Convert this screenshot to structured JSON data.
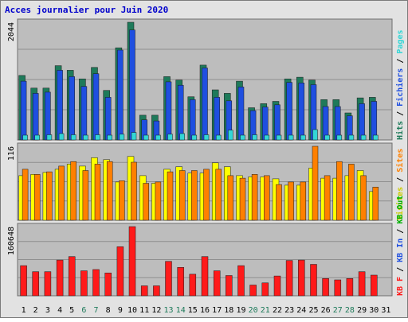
{
  "chart_data": {
    "type": "bar",
    "title": "Acces journalier pour Juin 2020",
    "categories": [
      "1",
      "2",
      "3",
      "4",
      "5",
      "6",
      "7",
      "8",
      "9",
      "10",
      "11",
      "12",
      "13",
      "14",
      "15",
      "16",
      "17",
      "18",
      "19",
      "20",
      "21",
      "22",
      "23",
      "24",
      "25",
      "26",
      "27",
      "28",
      "29",
      "30",
      "31"
    ],
    "weekend_days": [
      "6",
      "7",
      "13",
      "14",
      "20",
      "21",
      "27",
      "28"
    ],
    "panels": [
      {
        "id": "hits",
        "max_label": "2044",
        "ymax": 2044,
        "series": [
          {
            "name": "Hits",
            "color": "#1e7a5a",
            "values": [
              1120,
              900,
              900,
              1290,
              1210,
              1060,
              1260,
              860,
              1600,
              2044,
              430,
              430,
              1100,
              1040,
              750,
              1300,
              870,
              810,
              1020,
              560,
              630,
              670,
              1060,
              1090,
              1040,
              700,
              700,
              470,
              730,
              740,
              0
            ]
          },
          {
            "name": "Fichiers",
            "color": "#1f4fe0",
            "values": [
              1020,
              810,
              830,
              1210,
              1100,
              930,
              1150,
              740,
              1560,
              1910,
              350,
              330,
              1010,
              950,
              700,
              1250,
              740,
              680,
              920,
              510,
              570,
              610,
              1000,
              990,
              960,
              580,
              580,
              420,
              630,
              670,
              0
            ]
          },
          {
            "name": "Pages",
            "color": "#33d6d6",
            "values": [
              80,
              80,
              90,
              110,
              90,
              70,
              90,
              70,
              100,
              130,
              60,
              60,
              100,
              110,
              70,
              90,
              70,
              170,
              80,
              90,
              60,
              60,
              70,
              70,
              180,
              80,
              70,
              60,
              80,
              70,
              0
            ]
          }
        ],
        "legend": [
          {
            "text": "Hits",
            "color": "#1e7a5a"
          },
          {
            "text": "/",
            "color": "#000000"
          },
          {
            "text": "Fichiers",
            "color": "#1f4fe0"
          },
          {
            "text": "/",
            "color": "#000000"
          },
          {
            "text": "Pages",
            "color": "#33d6d6"
          }
        ]
      },
      {
        "id": "visites",
        "max_label": "116",
        "ymax": 116,
        "series": [
          {
            "name": "Visites",
            "color": "#ffff00",
            "values": [
              70,
              72,
              75,
              80,
              88,
              85,
              98,
              95,
              60,
              100,
              70,
              58,
              80,
              84,
              74,
              74,
              90,
              84,
              70,
              68,
              68,
              65,
              55,
              55,
              82,
              66,
              66,
              70,
              78,
              45,
              0
            ]
          },
          {
            "name": "Sites",
            "color": "#ff8000",
            "values": [
              80,
              72,
              76,
              85,
              92,
              78,
              88,
              92,
              62,
              91,
              58,
              60,
              76,
              78,
              78,
              80,
              80,
              70,
              66,
              72,
              70,
              56,
              60,
              60,
              116,
              70,
              92,
              88,
              70,
              52,
              0
            ]
          }
        ],
        "legend": [
          {
            "text": "Visites",
            "color": "#cccc00"
          },
          {
            "text": "/",
            "color": "#000000"
          },
          {
            "text": "Sites",
            "color": "#ff8000"
          }
        ]
      },
      {
        "id": "kbf",
        "max_label": "160648",
        "ymax": 160648,
        "series": [
          {
            "name": "KB F",
            "color": "#ff1a1a",
            "values": [
              70000,
              56000,
              56000,
              83000,
              91000,
              58000,
              61000,
              53000,
              114000,
              160648,
              23000,
              23000,
              80000,
              66000,
              50000,
              91000,
              58000,
              47000,
              70000,
              25000,
              30000,
              46000,
              82000,
              83000,
              73000,
              40000,
              37000,
              40000,
              56000,
              48000,
              0
            ]
          }
        ],
        "legend": [
          {
            "text": "KB F",
            "color": "#ff1a1a"
          },
          {
            "text": "/",
            "color": "#000000"
          },
          {
            "text": "KB In",
            "color": "#1f4fe0"
          },
          {
            "text": "/",
            "color": "#000000"
          },
          {
            "text": "KB Out",
            "color": "#00b000"
          }
        ]
      }
    ],
    "grid": true,
    "xlabel": "",
    "ylabel": ""
  }
}
